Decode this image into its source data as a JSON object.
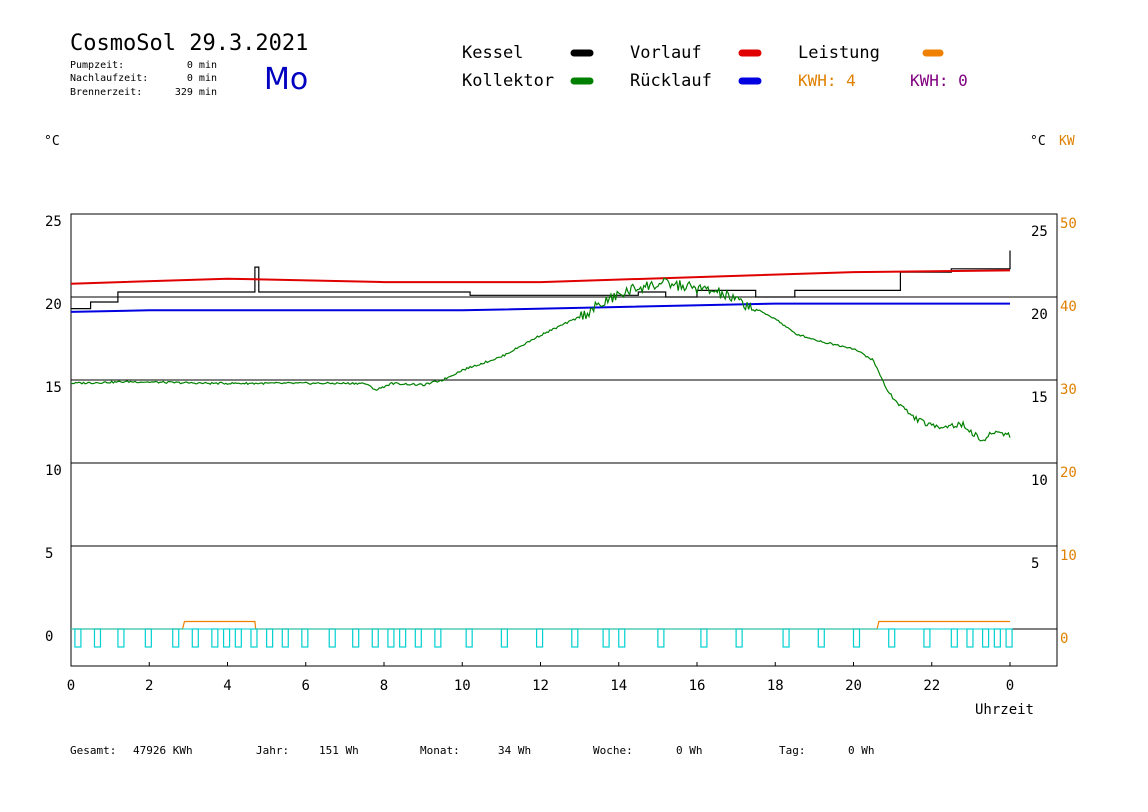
{
  "header": {
    "title": "CosmoSol 29.3.2021",
    "day": "Mo",
    "stats": [
      {
        "label": "Pumpzeit:",
        "value": "0 min"
      },
      {
        "label": "Nachlaufzeit:",
        "value": "0 min"
      },
      {
        "label": "Brennerzeit:",
        "value": "329 min"
      }
    ]
  },
  "legend": {
    "items": [
      {
        "label": "Kessel",
        "color": "#000000"
      },
      {
        "label": "Kollektor",
        "color": "#008000"
      },
      {
        "label": "Vorlauf",
        "color": "#e00000"
      },
      {
        "label": "Rücklauf",
        "color": "#0000e0"
      },
      {
        "label": "Leistung",
        "color": "#f08000"
      }
    ],
    "kwh_left": "KWH: 4",
    "kwh_right": "KWH: 0",
    "kwh_left_color": "#e08000",
    "kwh_right_color": "#800080"
  },
  "axes": {
    "left_unit": "°C",
    "right_unit_c": "°C",
    "right_unit_kw": "KW",
    "xlabel": "Uhrzeit",
    "kw_color": "#e08000"
  },
  "chart_data": {
    "type": "line",
    "x_range": [
      0,
      24
    ],
    "xticks": [
      "0",
      "2",
      "4",
      "6",
      "8",
      "10",
      "12",
      "14",
      "16",
      "18",
      "20",
      "22",
      "0"
    ],
    "left_ticks": [
      "25",
      "20",
      "15",
      "10",
      "5",
      "0"
    ],
    "right_ticks_c": [
      "25",
      "20",
      "15",
      "10",
      "5"
    ],
    "right_ticks_kw": [
      "50",
      "40",
      "30",
      "20",
      "10",
      "0"
    ],
    "y_range": [
      -2,
      25
    ],
    "grid": true,
    "series": [
      {
        "name": "Kessel",
        "color": "#000000",
        "x": [
          0,
          0.5,
          1.2,
          3.2,
          4.7,
          4.8,
          8.2,
          10.2,
          13.0,
          14.5,
          15.2,
          16.0,
          17.5,
          18.5,
          20.3,
          21.2,
          22.5,
          24.0
        ],
        "y": [
          19.3,
          19.7,
          20.3,
          20.3,
          21.8,
          20.3,
          20.3,
          20.1,
          20.1,
          20.3,
          20.0,
          20.4,
          20.0,
          20.4,
          20.4,
          21.5,
          21.7,
          22.8
        ]
      },
      {
        "name": "Vorlauf",
        "color": "#e00000",
        "x": [
          0,
          4,
          8,
          12,
          16,
          20,
          24
        ],
        "y": [
          20.8,
          21.1,
          20.9,
          20.9,
          21.2,
          21.5,
          21.6
        ]
      },
      {
        "name": "Rücklauf",
        "color": "#0000e0",
        "x": [
          0,
          2,
          6,
          10,
          14,
          18,
          24
        ],
        "y": [
          19.1,
          19.2,
          19.2,
          19.2,
          19.4,
          19.6,
          19.6
        ]
      },
      {
        "name": "Kollektor",
        "color": "#008000",
        "x": [
          0,
          1.5,
          3.5,
          5.5,
          7.5,
          7.8,
          8.2,
          9.0,
          9.5,
          10.0,
          11.0,
          12.0,
          13.0,
          13.8,
          14.5,
          15.2,
          15.8,
          16.5,
          17.2,
          18.0,
          18.5,
          19.2,
          20.0,
          20.5,
          20.9,
          21.5,
          22.0,
          22.8,
          23.3,
          23.6,
          24.0
        ],
        "y": [
          14.8,
          14.9,
          14.8,
          14.8,
          14.8,
          14.4,
          14.8,
          14.7,
          15.0,
          15.6,
          16.4,
          17.7,
          18.8,
          19.9,
          20.6,
          20.8,
          20.6,
          20.3,
          19.6,
          18.7,
          17.8,
          17.3,
          16.9,
          16.2,
          14.2,
          12.8,
          12.2,
          12.3,
          11.3,
          11.9,
          11.7
        ]
      },
      {
        "name": "Leistung",
        "color": "#f08000",
        "x": [
          0,
          2.85,
          2.9,
          4.7,
          4.72,
          20.6,
          20.65,
          24.0
        ],
        "y": [
          0,
          0,
          0.45,
          0.45,
          0,
          0,
          0.45,
          0.45
        ]
      }
    ],
    "pump_pulses": [
      0.1,
      0.6,
      1.2,
      1.9,
      2.6,
      3.1,
      3.6,
      3.9,
      4.2,
      4.6,
      5.0,
      5.4,
      5.9,
      6.6,
      7.2,
      7.7,
      8.1,
      8.4,
      8.8,
      9.3,
      10.1,
      11.0,
      11.9,
      12.8,
      13.6,
      14.0,
      15.0,
      16.1,
      17.0,
      18.2,
      19.1,
      20.0,
      20.9,
      21.8,
      22.5,
      22.9,
      23.3,
      23.6,
      23.9
    ],
    "pump_color": "#00d0d0"
  },
  "footer": [
    {
      "label": "Gesamt:",
      "value": "47926 KWh"
    },
    {
      "label": "Jahr:",
      "value": "151 Wh"
    },
    {
      "label": "Monat:",
      "value": "34 Wh"
    },
    {
      "label": "Woche:",
      "value": "0 Wh"
    },
    {
      "label": "Tag:",
      "value": "0 Wh"
    }
  ]
}
